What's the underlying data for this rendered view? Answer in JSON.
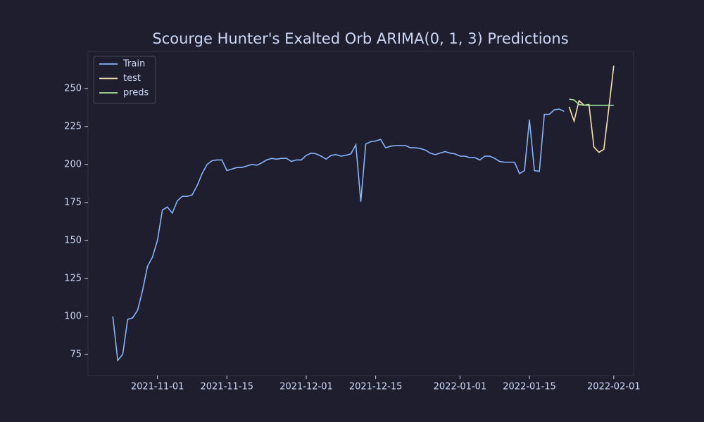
{
  "chart_data": {
    "type": "line",
    "title": "Scourge Hunter's Exalted Orb ARIMA(0, 1, 3) Predictions",
    "xlim": [
      "2021-10-18",
      "2022-02-05"
    ],
    "xticks": [
      "2021-11-01",
      "2021-11-15",
      "2021-12-01",
      "2021-12-15",
      "2022-01-01",
      "2022-01-15",
      "2022-02-01"
    ],
    "ylim": [
      61,
      274.5
    ],
    "yticks": [
      75,
      100,
      125,
      150,
      175,
      200,
      225,
      250
    ],
    "legend": "upper left",
    "series": [
      {
        "name": "Train",
        "color": "#89b4fa",
        "x": [
          "2021-10-23",
          "2021-10-24",
          "2021-10-25",
          "2021-10-26",
          "2021-10-27",
          "2021-10-28",
          "2021-10-29",
          "2021-10-30",
          "2021-10-31",
          "2021-11-01",
          "2021-11-02",
          "2021-11-03",
          "2021-11-04",
          "2021-11-05",
          "2021-11-06",
          "2021-11-07",
          "2021-11-08",
          "2021-11-09",
          "2021-11-10",
          "2021-11-11",
          "2021-11-12",
          "2021-11-13",
          "2021-11-14",
          "2021-11-15",
          "2021-11-16",
          "2021-11-17",
          "2021-11-18",
          "2021-11-19",
          "2021-11-20",
          "2021-11-21",
          "2021-11-22",
          "2021-11-23",
          "2021-11-24",
          "2021-11-25",
          "2021-11-26",
          "2021-11-27",
          "2021-11-28",
          "2021-11-29",
          "2021-11-30",
          "2021-12-01",
          "2021-12-02",
          "2021-12-03",
          "2021-12-04",
          "2021-12-05",
          "2021-12-06",
          "2021-12-07",
          "2021-12-08",
          "2021-12-09",
          "2021-12-10",
          "2021-12-11",
          "2021-12-12",
          "2021-12-13",
          "2021-12-14",
          "2021-12-15",
          "2021-12-16",
          "2021-12-17",
          "2021-12-18",
          "2021-12-19",
          "2021-12-20",
          "2021-12-21",
          "2021-12-22",
          "2021-12-23",
          "2021-12-24",
          "2021-12-25",
          "2021-12-26",
          "2021-12-27",
          "2021-12-28",
          "2021-12-29",
          "2021-12-30",
          "2021-12-31",
          "2022-01-01",
          "2022-01-02",
          "2022-01-03",
          "2022-01-04",
          "2022-01-05",
          "2022-01-06",
          "2022-01-07",
          "2022-01-08",
          "2022-01-09",
          "2022-01-10",
          "2022-01-11",
          "2022-01-12",
          "2022-01-13",
          "2022-01-14",
          "2022-01-15",
          "2022-01-16",
          "2022-01-17",
          "2022-01-18",
          "2022-01-19",
          "2022-01-20",
          "2022-01-21",
          "2022-01-22"
        ],
        "values": [
          100,
          71,
          75,
          98,
          99,
          104,
          117,
          133,
          139,
          150,
          170,
          172,
          168,
          176,
          179,
          179,
          180,
          186,
          194,
          200,
          202.5,
          203,
          203,
          196,
          197,
          198,
          198,
          199,
          200,
          199.5,
          201,
          203,
          204,
          203.5,
          204,
          204,
          202,
          203,
          203,
          206,
          207.5,
          207,
          205.5,
          203.5,
          206,
          206.5,
          205.5,
          206,
          207,
          213,
          175.5,
          213.5,
          215,
          215.5,
          216.5,
          211,
          212,
          212.5,
          212.5,
          212.5,
          211,
          211,
          210.5,
          209.5,
          207.5,
          206.5,
          207.5,
          208.5,
          207.5,
          207,
          205.5,
          205.5,
          204.5,
          204.5,
          203,
          205.5,
          205.5,
          204,
          202,
          201.5,
          201.5,
          201.5,
          194,
          196,
          229.5,
          196,
          195.5,
          233,
          233,
          236,
          236.5,
          235
        ]
      },
      {
        "name": "test",
        "color": "#f9e2af",
        "x": [
          "2022-01-23",
          "2022-01-24",
          "2022-01-25",
          "2022-01-26",
          "2022-01-27",
          "2022-01-28",
          "2022-01-29",
          "2022-01-30",
          "2022-01-31",
          "2022-02-01"
        ],
        "values": [
          238,
          228.5,
          242,
          239,
          239.5,
          211.5,
          208,
          210,
          237,
          265
        ]
      },
      {
        "name": "preds",
        "color": "#a6e3a1",
        "x": [
          "2022-01-23",
          "2022-01-24",
          "2022-01-25",
          "2022-01-26",
          "2022-01-27",
          "2022-01-28",
          "2022-01-29",
          "2022-01-30",
          "2022-01-31",
          "2022-02-01"
        ],
        "values": [
          243,
          242.5,
          239.5,
          239,
          239,
          239,
          239,
          239,
          239,
          239
        ]
      }
    ]
  }
}
